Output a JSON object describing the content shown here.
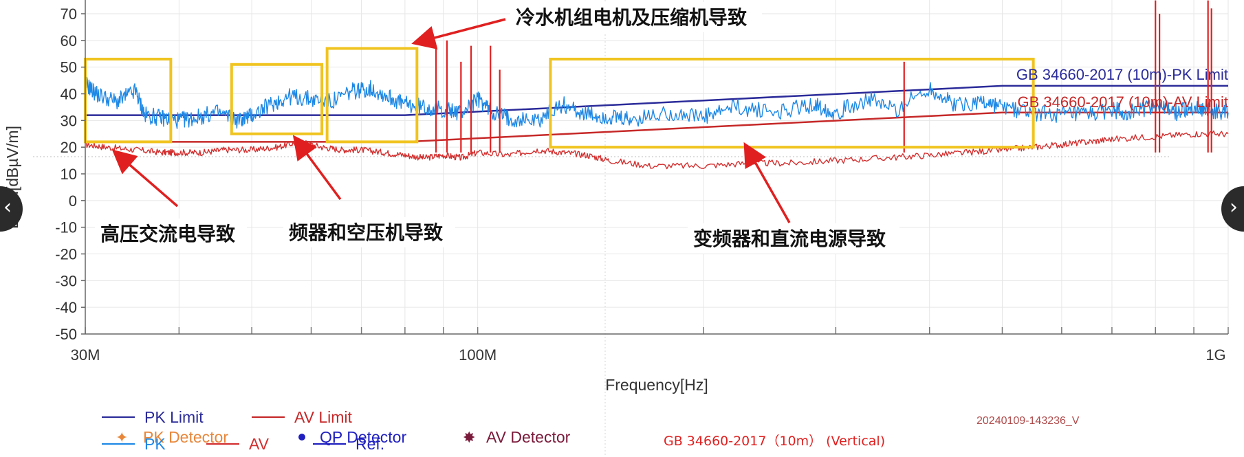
{
  "chart_data": {
    "type": "line",
    "xscale": "log",
    "xlim": [
      30000000,
      1000000000
    ],
    "ylim": [
      -50,
      75
    ],
    "xlabel": "Frequency[Hz]",
    "ylabel": "Level[dBµV/m]",
    "x_ticks": [
      {
        "value": 30000000,
        "label": "30M"
      },
      {
        "value": 100000000,
        "label": "100M"
      },
      {
        "value": 1000000000,
        "label": "1G"
      }
    ],
    "y_ticks": [
      70,
      60,
      50,
      40,
      30,
      20,
      10,
      0,
      -10,
      -20,
      -30,
      -40,
      -50
    ],
    "limits": [
      {
        "name": "GB 34660-2017 (10m)-PK Limit",
        "color": "#2b2b9a",
        "x": [
          30000000,
          80000000,
          500000000,
          1000000000
        ],
        "y": [
          32,
          32,
          43,
          43
        ]
      },
      {
        "name": "GB 34660-2017 (10m)-AV Limit",
        "color": "#c62828",
        "x": [
          30000000,
          80000000,
          500000000,
          1000000000
        ],
        "y": [
          22,
          22,
          33,
          33
        ]
      }
    ],
    "series": [
      {
        "name": "PK",
        "color": "#1e88e5",
        "x": [
          30000000,
          31000000,
          33000000,
          35000000,
          36000000,
          38000000,
          40000000,
          42000000,
          45000000,
          48000000,
          50000000,
          53000000,
          56000000,
          60000000,
          64000000,
          68000000,
          72000000,
          76000000,
          80000000,
          85000000,
          90000000,
          95000000,
          100000000,
          105000000,
          110000000,
          120000000,
          130000000,
          140000000,
          150000000,
          160000000,
          180000000,
          200000000,
          220000000,
          250000000,
          280000000,
          300000000,
          330000000,
          360000000,
          400000000,
          430000000,
          470000000,
          500000000,
          550000000,
          600000000,
          650000000,
          700000000,
          750000000,
          800000000,
          850000000,
          900000000,
          950000000,
          1000000000
        ],
        "y": [
          44,
          40,
          37,
          41,
          32,
          31,
          30,
          31,
          33,
          30,
          32,
          36,
          39,
          38,
          37,
          41,
          42,
          39,
          36,
          35,
          34,
          33,
          38,
          33,
          31,
          30,
          36,
          32,
          31,
          30,
          33,
          31,
          35,
          33,
          36,
          33,
          38,
          34,
          42,
          36,
          37,
          35,
          33,
          32,
          32,
          34,
          33,
          36,
          33,
          35,
          34,
          33
        ]
      },
      {
        "name": "AV",
        "color": "#d32f2f",
        "x": [
          30000000,
          32000000,
          35000000,
          38000000,
          40000000,
          43000000,
          46000000,
          50000000,
          54000000,
          58000000,
          62000000,
          66000000,
          70000000,
          75000000,
          80000000,
          85000000,
          90000000,
          95000000,
          100000000,
          110000000,
          120000000,
          130000000,
          140000000,
          150000000,
          170000000,
          200000000,
          230000000,
          260000000,
          300000000,
          350000000,
          400000000,
          450000000,
          500000000,
          550000000,
          600000000,
          650000000,
          700000000,
          800000000,
          900000000,
          1000000000
        ],
        "y": [
          21,
          20,
          19,
          18,
          18,
          18,
          19,
          19,
          20,
          22,
          20,
          19,
          19,
          18,
          17,
          16,
          17,
          16,
          18,
          17,
          19,
          18,
          17,
          15,
          13,
          13,
          14,
          14,
          15,
          16,
          17,
          18,
          19,
          20,
          21,
          22,
          23,
          24,
          25,
          25
        ]
      }
    ],
    "spikes": [
      {
        "x": 88000000,
        "y": 57
      },
      {
        "x": 91000000,
        "y": 60
      },
      {
        "x": 95000000,
        "y": 52
      },
      {
        "x": 98000000,
        "y": 58
      },
      {
        "x": 104000000,
        "y": 58
      },
      {
        "x": 107000000,
        "y": 49
      },
      {
        "x": 370000000,
        "y": 52
      },
      {
        "x": 800000000,
        "y": 75
      },
      {
        "x": 810000000,
        "y": 70
      },
      {
        "x": 940000000,
        "y": 75
      },
      {
        "x": 950000000,
        "y": 72
      }
    ],
    "annotations": [
      {
        "text": "冷水机组电机及压缩机导致",
        "box": null
      },
      {
        "text": "高压交流电导致"
      },
      {
        "text": "频器和空压机导致"
      },
      {
        "text": "变频器和直流电源导致"
      }
    ],
    "legend": {
      "placement": "bottom-left",
      "items": [
        {
          "label": "PK Limit",
          "color": "#2b2b9a",
          "marker": "line"
        },
        {
          "label": "AV Limit",
          "color": "#c62828",
          "marker": "line"
        },
        {
          "label": "PK Detector",
          "color": "#e8873a",
          "marker": "star"
        },
        {
          "label": "QP Detector",
          "color": "#2020c0",
          "marker": "dot"
        },
        {
          "label": "AV Detector",
          "color": "#7a1a3a",
          "marker": "burst"
        },
        {
          "label": "PK",
          "color": "#1e88e5",
          "marker": "line"
        },
        {
          "label": "AV",
          "color": "#d32f2f",
          "marker": "line"
        },
        {
          "label": "Ref.",
          "color": "#2020c0",
          "marker": "line"
        }
      ]
    },
    "timestamp": "20240109-143236_V",
    "standard_label": "GB 34660-2017（10m） (Vertical)",
    "grid": true
  },
  "nav": {
    "prev": "‹",
    "next": "›"
  }
}
